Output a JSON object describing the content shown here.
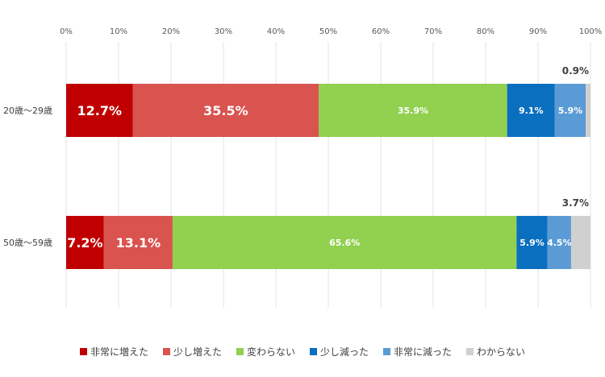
{
  "chart_data": {
    "type": "bar",
    "orientation": "horizontal",
    "stacked": true,
    "xlim": [
      0,
      100
    ],
    "x_tick_labels": [
      "0%",
      "10%",
      "20%",
      "30%",
      "40%",
      "50%",
      "60%",
      "70%",
      "80%",
      "90%",
      "100%"
    ],
    "categories": [
      "20歳～29歳",
      "50歳～59歳"
    ],
    "series": [
      {
        "name": "非常に増えた",
        "color": "#c00000",
        "values": [
          12.7,
          7.2
        ],
        "labels": [
          "12.7%",
          "7.2%"
        ]
      },
      {
        "name": "少し増えた",
        "color": "#d9534f",
        "values": [
          35.5,
          13.1
        ],
        "labels": [
          "35.5%",
          "13.1%"
        ]
      },
      {
        "name": "変わらない",
        "color": "#92d050",
        "values": [
          35.9,
          65.6
        ],
        "labels": [
          "35.9%",
          "65.6%"
        ]
      },
      {
        "name": "少し減った",
        "color": "#0b6fc0",
        "values": [
          9.1,
          5.9
        ],
        "labels": [
          "9.1%",
          "5.9%"
        ]
      },
      {
        "name": "非常に減った",
        "color": "#5b9bd5",
        "values": [
          5.9,
          4.5
        ],
        "labels": [
          "5.9%",
          "4.5%"
        ]
      },
      {
        "name": "わからない",
        "color": "#d0d0d0",
        "values": [
          0.9,
          3.7
        ],
        "labels": [
          "0.9%",
          "3.7%"
        ]
      }
    ],
    "grid": "vertical",
    "legend_position": "bottom"
  }
}
